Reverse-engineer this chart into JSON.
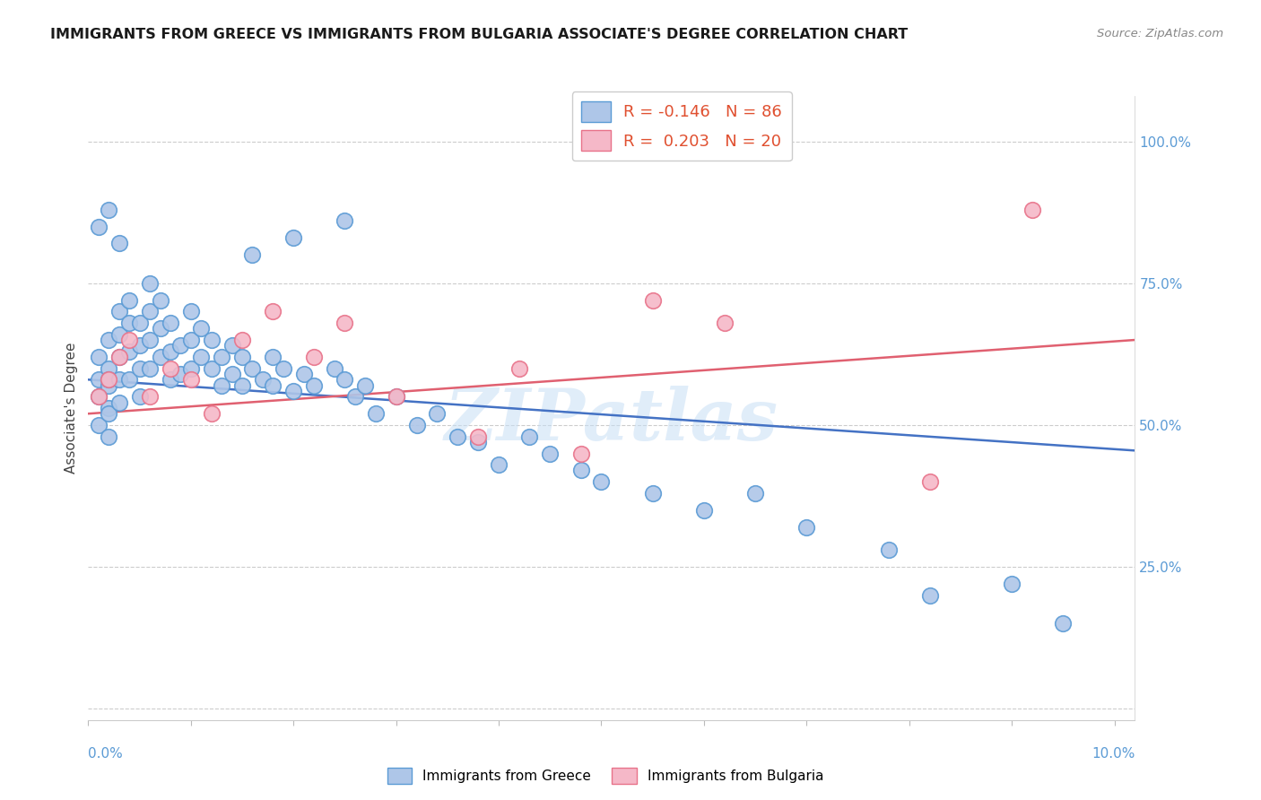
{
  "title": "IMMIGRANTS FROM GREECE VS IMMIGRANTS FROM BULGARIA ASSOCIATE'S DEGREE CORRELATION CHART",
  "source": "Source: ZipAtlas.com",
  "ylabel": "Associate's Degree",
  "watermark": "ZIPatlas",
  "greece_color": "#aec6e8",
  "bulgaria_color": "#f5b8c8",
  "greece_edge_color": "#5b9bd5",
  "bulgaria_edge_color": "#e8738a",
  "greece_line_color": "#4472c4",
  "bulgaria_line_color": "#e06070",
  "greece_R": -0.146,
  "greece_N": 86,
  "bulgaria_R": 0.203,
  "bulgaria_N": 20,
  "ytick_vals": [
    0.0,
    0.25,
    0.5,
    0.75,
    1.0
  ],
  "ytick_labels": [
    "",
    "25.0%",
    "50.0%",
    "75.0%",
    "100.0%"
  ],
  "xlim": [
    0.0,
    0.1
  ],
  "ylim": [
    0.0,
    1.05
  ],
  "greece_x": [
    0.001,
    0.001,
    0.001,
    0.001,
    0.002,
    0.002,
    0.002,
    0.002,
    0.002,
    0.002,
    0.002,
    0.003,
    0.003,
    0.003,
    0.003,
    0.003,
    0.004,
    0.004,
    0.004,
    0.004,
    0.005,
    0.005,
    0.005,
    0.005,
    0.006,
    0.006,
    0.006,
    0.006,
    0.007,
    0.007,
    0.007,
    0.008,
    0.008,
    0.008,
    0.009,
    0.009,
    0.01,
    0.01,
    0.01,
    0.011,
    0.011,
    0.012,
    0.012,
    0.013,
    0.013,
    0.014,
    0.014,
    0.015,
    0.015,
    0.016,
    0.017,
    0.018,
    0.018,
    0.019,
    0.02,
    0.021,
    0.022,
    0.024,
    0.025,
    0.026,
    0.027,
    0.028,
    0.03,
    0.032,
    0.034,
    0.036,
    0.038,
    0.04,
    0.043,
    0.045,
    0.048,
    0.05,
    0.055,
    0.06,
    0.065,
    0.07,
    0.078,
    0.082,
    0.09,
    0.095,
    0.001,
    0.002,
    0.003,
    0.016,
    0.02,
    0.025
  ],
  "greece_y": [
    0.62,
    0.58,
    0.55,
    0.5,
    0.65,
    0.6,
    0.57,
    0.53,
    0.48,
    0.58,
    0.52,
    0.7,
    0.66,
    0.62,
    0.58,
    0.54,
    0.72,
    0.68,
    0.63,
    0.58,
    0.68,
    0.64,
    0.6,
    0.55,
    0.75,
    0.7,
    0.65,
    0.6,
    0.72,
    0.67,
    0.62,
    0.68,
    0.63,
    0.58,
    0.64,
    0.59,
    0.7,
    0.65,
    0.6,
    0.67,
    0.62,
    0.65,
    0.6,
    0.62,
    0.57,
    0.64,
    0.59,
    0.62,
    0.57,
    0.6,
    0.58,
    0.62,
    0.57,
    0.6,
    0.56,
    0.59,
    0.57,
    0.6,
    0.58,
    0.55,
    0.57,
    0.52,
    0.55,
    0.5,
    0.52,
    0.48,
    0.47,
    0.43,
    0.48,
    0.45,
    0.42,
    0.4,
    0.38,
    0.35,
    0.38,
    0.32,
    0.28,
    0.2,
    0.22,
    0.15,
    0.85,
    0.88,
    0.82,
    0.8,
    0.83,
    0.86
  ],
  "bulgaria_x": [
    0.001,
    0.002,
    0.003,
    0.004,
    0.006,
    0.008,
    0.01,
    0.012,
    0.015,
    0.018,
    0.022,
    0.025,
    0.03,
    0.038,
    0.042,
    0.048,
    0.055,
    0.062,
    0.082,
    0.092
  ],
  "bulgaria_y": [
    0.55,
    0.58,
    0.62,
    0.65,
    0.55,
    0.6,
    0.58,
    0.52,
    0.65,
    0.7,
    0.62,
    0.68,
    0.55,
    0.48,
    0.6,
    0.45,
    0.72,
    0.68,
    0.4,
    0.88
  ]
}
